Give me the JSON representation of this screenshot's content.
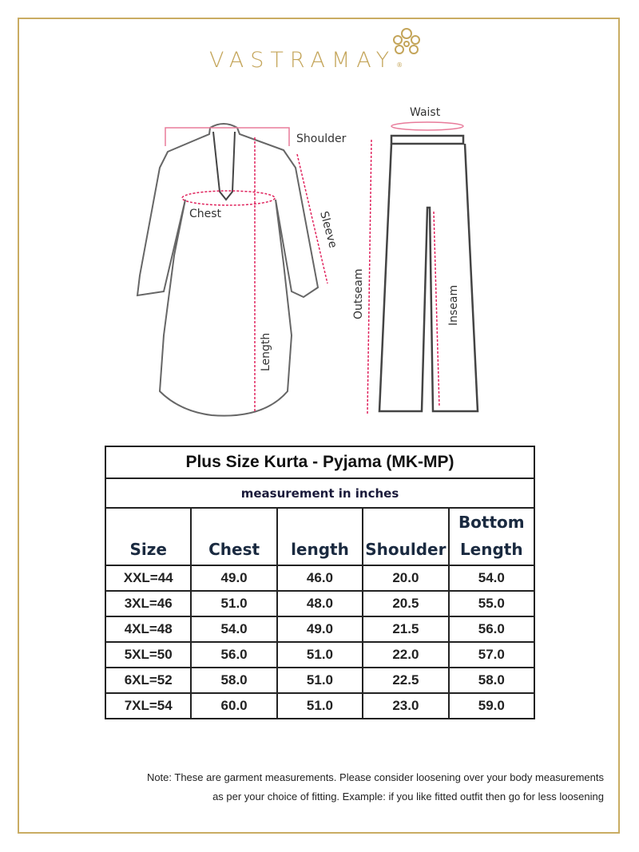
{
  "brand": {
    "name": "VASTRAMAY",
    "registered": "®",
    "color": "#c4a55a"
  },
  "diagram": {
    "kurta_labels": [
      "Shoulder",
      "Chest",
      "Sleeve",
      "Length"
    ],
    "pyjama_labels": [
      "Waist",
      "Outseam",
      "Inseam"
    ],
    "measure_line_color": "#e0245e"
  },
  "table": {
    "title": "Plus Size Kurta - Pyjama (MK-MP)",
    "subtitle": "measurement in inches",
    "headers": [
      "Size",
      "Chest",
      "length",
      "Shoulder",
      "Bottom Length"
    ],
    "header_bottom_line1": "Bottom",
    "header_bottom_line2": "Length",
    "rows": [
      [
        "XXL=44",
        "49.0",
        "46.0",
        "20.0",
        "54.0"
      ],
      [
        "3XL=46",
        "51.0",
        "48.0",
        "20.5",
        "55.0"
      ],
      [
        "4XL=48",
        "54.0",
        "49.0",
        "21.5",
        "56.0"
      ],
      [
        "5XL=50",
        "56.0",
        "51.0",
        "22.0",
        "57.0"
      ],
      [
        "6XL=52",
        "58.0",
        "51.0",
        "22.5",
        "58.0"
      ],
      [
        "7XL=54",
        "60.0",
        "51.0",
        "23.0",
        "59.0"
      ]
    ]
  },
  "note": {
    "line1": "Note: These are garment measurements. Please consider loosening over your body measurements",
    "line2": "as per your choice of fitting. Example: if you like fitted outfit then go for less loosening"
  }
}
